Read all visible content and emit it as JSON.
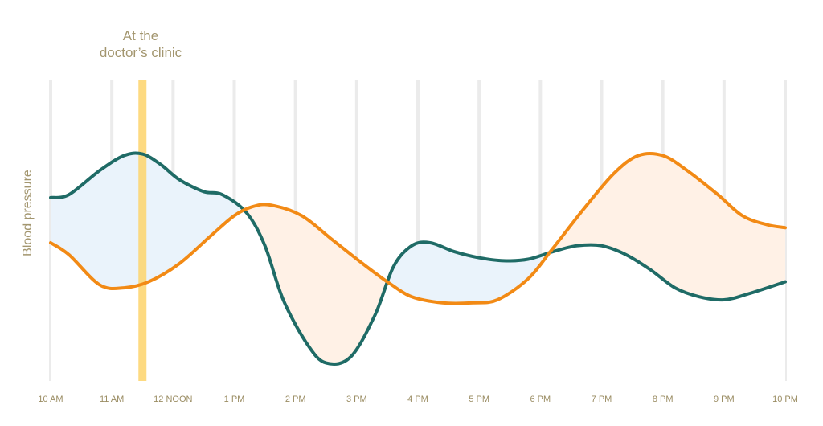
{
  "chart_data": {
    "type": "line",
    "x_ticks": [
      "10 AM",
      "11 AM",
      "12 NOON",
      "1 PM",
      "2 PM",
      "3 PM",
      "4 PM",
      "5 PM",
      "6 PM",
      "7 PM",
      "8 PM",
      "9 PM",
      "10 PM"
    ],
    "x_range": [
      0,
      12
    ],
    "y_range": [
      0,
      100
    ],
    "ylabel": "Blood pressure",
    "y_ticks_shown": false,
    "grid": "vertical",
    "annotation": {
      "lines": [
        "At the",
        "doctor’s clinic"
      ],
      "x": 1.5
    },
    "series": [
      {
        "color": "#1f6b66",
        "fill_color": "#bfeaf7",
        "points": [
          [
            0,
            61
          ],
          [
            0.3,
            62
          ],
          [
            0.8,
            70
          ],
          [
            1.2,
            75
          ],
          [
            1.5,
            75.5
          ],
          [
            1.8,
            72
          ],
          [
            2.1,
            67
          ],
          [
            2.5,
            63
          ],
          [
            2.8,
            62
          ],
          [
            3.2,
            56
          ],
          [
            3.5,
            45
          ],
          [
            3.8,
            27
          ],
          [
            4.2,
            12
          ],
          [
            4.5,
            6
          ],
          [
            4.9,
            8
          ],
          [
            5.3,
            22
          ],
          [
            5.6,
            38
          ],
          [
            5.9,
            45
          ],
          [
            6.2,
            46
          ],
          [
            6.6,
            43
          ],
          [
            7.0,
            41
          ],
          [
            7.4,
            40
          ],
          [
            7.8,
            40.5
          ],
          [
            8.2,
            43
          ],
          [
            8.6,
            45
          ],
          [
            9.0,
            45
          ],
          [
            9.4,
            42
          ],
          [
            9.8,
            37
          ],
          [
            10.2,
            31
          ],
          [
            10.6,
            28
          ],
          [
            11.0,
            27
          ],
          [
            11.4,
            29
          ],
          [
            12.0,
            33
          ]
        ]
      },
      {
        "color": "#f28a15",
        "fill_color": "#fcd3b4",
        "points": [
          [
            0,
            46
          ],
          [
            0.3,
            42
          ],
          [
            0.8,
            32
          ],
          [
            1.2,
            31
          ],
          [
            1.6,
            33
          ],
          [
            2.1,
            39
          ],
          [
            2.6,
            48
          ],
          [
            3.0,
            55
          ],
          [
            3.3,
            58
          ],
          [
            3.6,
            58.5
          ],
          [
            4.1,
            55
          ],
          [
            4.6,
            47
          ],
          [
            5.1,
            39
          ],
          [
            5.5,
            33
          ],
          [
            5.9,
            28
          ],
          [
            6.4,
            26
          ],
          [
            6.9,
            26
          ],
          [
            7.3,
            27
          ],
          [
            7.8,
            34
          ],
          [
            8.2,
            44
          ],
          [
            8.7,
            57
          ],
          [
            9.2,
            69
          ],
          [
            9.6,
            75
          ],
          [
            10.0,
            75
          ],
          [
            10.4,
            70
          ],
          [
            10.9,
            62
          ],
          [
            11.3,
            55
          ],
          [
            11.7,
            52
          ],
          [
            12.0,
            51
          ]
        ]
      }
    ],
    "colors": {
      "teal_area": "#bfeaf7",
      "orange_area": "#fcd3b4",
      "base_area": "#c9bdbd",
      "gridline": "#ebebeb",
      "highlight": "#fdd46b",
      "label_text": "#a3966f"
    }
  }
}
